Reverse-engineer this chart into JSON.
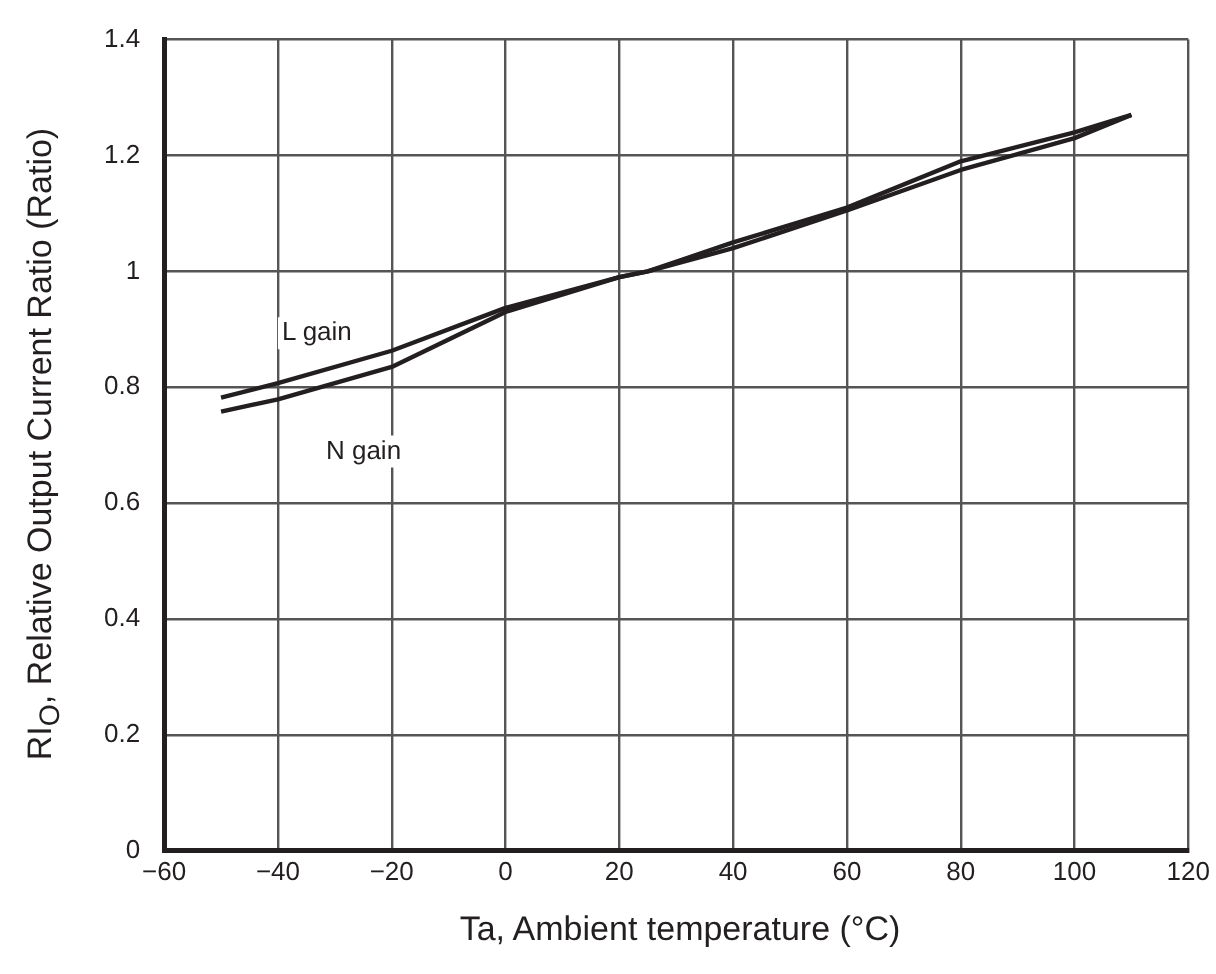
{
  "chart_data": {
    "type": "line",
    "xlabel": "Ta, Ambient temperature (°C)",
    "ylabel": "RI$_{O}$, Relative Output Current Ratio (Ratio)",
    "x": [
      -50,
      -40,
      -20,
      0,
      20,
      25,
      40,
      60,
      80,
      100,
      110
    ],
    "series": [
      {
        "name": "L gain",
        "color": "#231f20",
        "values": [
          0.782,
          0.807,
          0.863,
          0.937,
          0.99,
          1.0,
          1.05,
          1.11,
          1.19,
          1.24,
          1.27
        ]
      },
      {
        "name": "N gain",
        "color": "#231f20",
        "values": [
          0.758,
          0.779,
          0.835,
          0.93,
          0.99,
          1.0,
          1.04,
          1.105,
          1.175,
          1.23,
          1.27
        ]
      }
    ],
    "xlim": [
      -60,
      120
    ],
    "xticks": [
      -60,
      -40,
      -20,
      0,
      20,
      40,
      60,
      80,
      100,
      120
    ],
    "ylim": [
      0,
      1.4
    ],
    "yticks": [
      0,
      0.2,
      0.4,
      0.6,
      0.8,
      1,
      1.2,
      1.4
    ],
    "grid": true,
    "legend": false,
    "marker": "none",
    "line_style": "solid"
  }
}
